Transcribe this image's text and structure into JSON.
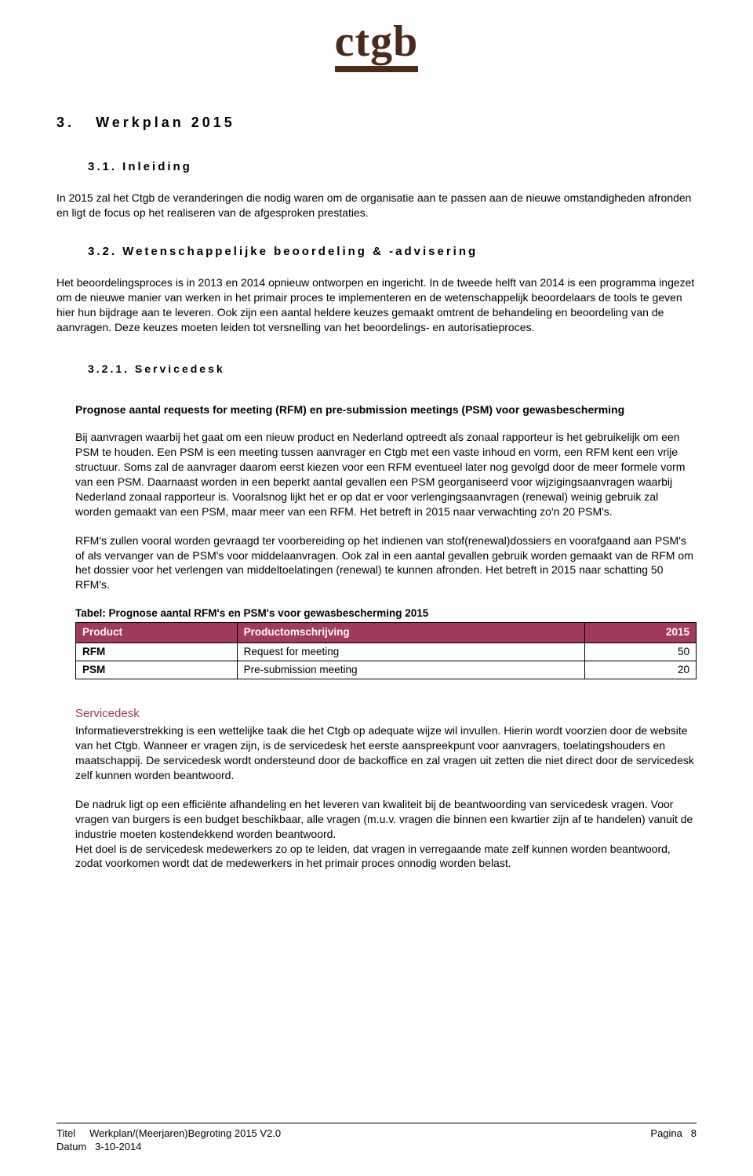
{
  "logo": {
    "text": "ctgb",
    "color": "#4a2a1a"
  },
  "chapter": {
    "number": "3.",
    "title": "Werkplan 2015"
  },
  "section_3_1": {
    "heading": "3.1. Inleiding",
    "para": "In 2015  zal het Ctgb de veranderingen die nodig waren om de organisatie aan te passen aan de nieuwe omstandigheden afronden en ligt de focus op het realiseren van de afgesproken prestaties."
  },
  "section_3_2": {
    "heading": "3.2. Wetenschappelijke beoordeling & -advisering",
    "para": "Het beoordelingsproces is in 2013 en 2014 opnieuw ontworpen en ingericht. In de tweede helft van 2014 is een programma ingezet om de nieuwe manier van werken in het primair proces te implementeren en de wetenschappelijk beoordelaars de tools te geven hier hun bijdrage aan te leveren. Ook zijn een aantal heldere keuzes gemaakt omtrent de behandeling en beoordeling van de aanvragen. Deze keuzes moeten leiden tot versnelling van het beoordelings- en autorisatieproces."
  },
  "section_3_2_1": {
    "heading": "3.2.1. Servicedesk",
    "bold_intro": "Prognose aantal requests for meeting (RFM) en pre-submission meetings (PSM) voor gewasbescherming",
    "para1": "Bij aanvragen waarbij het gaat om een nieuw product en Nederland optreedt als zonaal rapporteur is het gebruikelijk om een PSM te houden. Een PSM is een meeting tussen aanvrager en Ctgb met een vaste inhoud en vorm, een RFM kent een vrije structuur. Soms zal de aanvrager daarom eerst kiezen voor een RFM eventueel later nog gevolgd door de meer formele vorm van een PSM. Daarnaast worden in een beperkt aantal gevallen een PSM georganiseerd voor wijzigingsaanvragen waarbij Nederland zonaal rapporteur is. Vooralsnog lijkt het er op dat er voor verlengingsaanvragen (renewal) weinig gebruik zal worden gemaakt van een PSM, maar meer van een RFM. Het betreft in 2015 naar verwachting zo'n 20 PSM's.",
    "para2": "RFM's zullen vooral worden gevraagd ter voorbereiding op het indienen van stof(renewal)dossiers en voorafgaand aan PSM's of als vervanger van de PSM's voor middelaanvragen. Ook zal in een aantal gevallen gebruik worden gemaakt van de RFM om het dossier voor het verlengen van middeltoelatingen (renewal) te kunnen afronden. Het betreft in 2015 naar schatting 50 RFM's.",
    "table_caption": "Tabel: Prognose aantal RFM's  en PSM's voor gewasbescherming 2015",
    "table": {
      "header_bg": "#a13a5e",
      "columns": [
        "Product",
        "Productomschrijving",
        "2015"
      ],
      "col_widths": [
        "26%",
        "56%",
        "18%"
      ],
      "rows": [
        [
          "RFM",
          "Request for meeting",
          "50"
        ],
        [
          "PSM",
          "Pre-submission meeting",
          "20"
        ]
      ]
    },
    "servicedesk_heading": "Servicedesk",
    "servicedesk_color": "#a13a5e",
    "para3": "Informatieverstrekking is een wettelijke taak die het Ctgb op adequate wijze wil invullen. Hierin wordt voorzien door de website van het Ctgb. Wanneer er vragen zijn, is de servicedesk het eerste aanspreekpunt voor aanvragers, toelatingshouders en maatschappij. De servicedesk wordt ondersteund door de backoffice en zal vragen uit zetten die niet direct door de servicedesk zelf kunnen worden beantwoord.",
    "para4": "De nadruk ligt op een efficiënte afhandeling en het leveren van kwaliteit bij de beantwoording van servicedesk vragen. Voor vragen van burgers is een budget beschikbaar, alle vragen (m.u.v. vragen die binnen een kwartier zijn af te handelen) vanuit de industrie moeten kostendekkend worden beantwoord.",
    "para5": "Het doel is de servicedesk medewerkers zo op te leiden, dat vragen in verregaande mate zelf kunnen worden beantwoord, zodat voorkomen wordt dat de medewerkers in het primair proces onnodig worden belast."
  },
  "footer": {
    "title_label": "Titel",
    "title_value": "Werkplan/(Meerjaren)Begroting 2015  V2.0",
    "date_label": "Datum",
    "date_value": "3-10-2014",
    "page_label": "Pagina",
    "page_value": "8"
  }
}
